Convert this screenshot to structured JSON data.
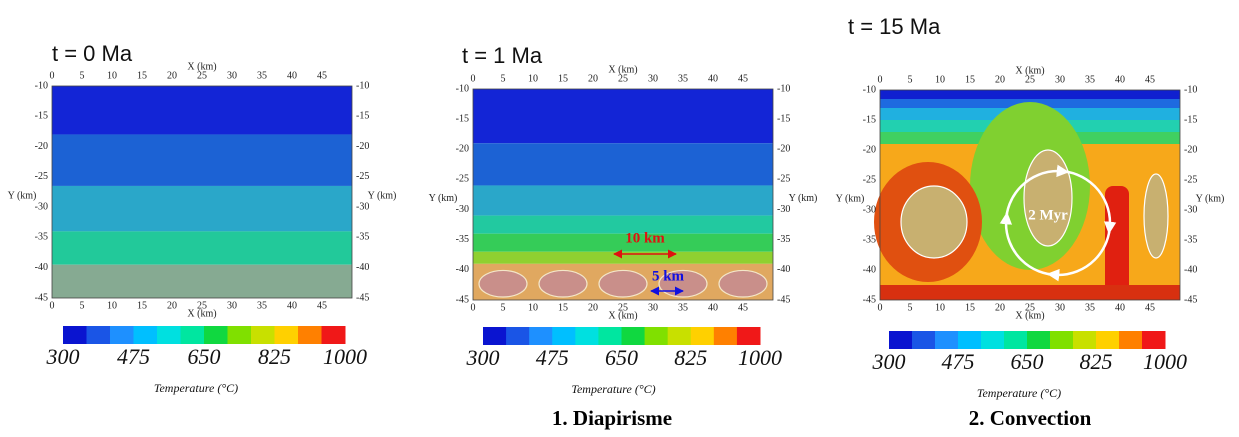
{
  "panels": [
    {
      "title": "t = 0 Ma",
      "x_label": "X (km)",
      "y_label": "Y (km)",
      "xticks": [
        0,
        5,
        10,
        15,
        20,
        25,
        30,
        35,
        40,
        45
      ],
      "yticks": [
        -10,
        -15,
        -20,
        -25,
        -30,
        -35,
        -40,
        -45
      ],
      "colorbar_ticks": [
        300,
        475,
        650,
        825,
        1000
      ],
      "colorbar_label": "Temperature (°C)"
    },
    {
      "title": "t = 1 Ma",
      "x_label": "X (km)",
      "y_label": "Y (km)",
      "xticks": [
        0,
        5,
        10,
        15,
        20,
        25,
        30,
        35,
        40,
        45
      ],
      "yticks": [
        -10,
        -15,
        -20,
        -25,
        -30,
        -35,
        -40,
        -45
      ],
      "colorbar_ticks": [
        300,
        475,
        650,
        825,
        1000
      ],
      "colorbar_label": "Temperature (°C)",
      "annotations": [
        "10 km",
        "5 km"
      ],
      "caption": "1. Diapirisme"
    },
    {
      "title": "t = 15 Ma",
      "x_label": "X (km)",
      "y_label": "Y (km)",
      "xticks": [
        0,
        5,
        10,
        15,
        20,
        25,
        30,
        35,
        40,
        45
      ],
      "yticks": [
        -10,
        -15,
        -20,
        -25,
        -30,
        -35,
        -40,
        -45
      ],
      "colorbar_ticks": [
        300,
        475,
        650,
        825,
        1000
      ],
      "colorbar_label": "Temperature (°C)",
      "annotations": [
        "2 Myr"
      ],
      "caption": "2. Convection"
    }
  ]
}
